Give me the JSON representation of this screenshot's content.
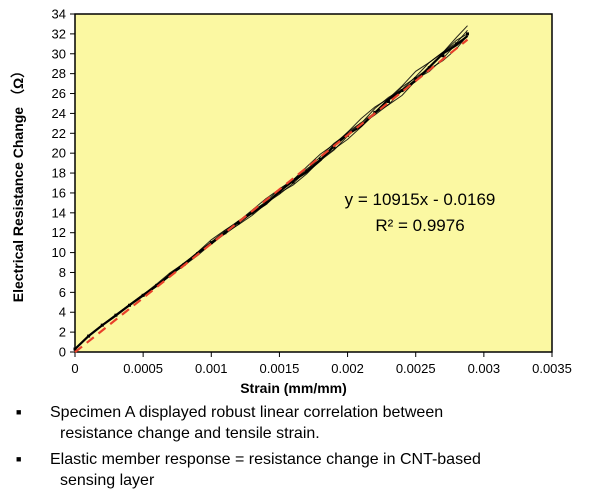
{
  "chart_data": {
    "type": "scatter",
    "xlabel": "Strain (mm/mm)",
    "ylabel": "Electrical Resistance Change （Ω）",
    "xlim": [
      0,
      0.0035
    ],
    "ylim": [
      0,
      34
    ],
    "x_ticks": [
      "0",
      "0.0005",
      "0.001",
      "0.0015",
      "0.002",
      "0.0025",
      "0.003",
      "0.0035"
    ],
    "y_ticks": [
      "0",
      "2",
      "4",
      "6",
      "8",
      "10",
      "12",
      "14",
      "16",
      "18",
      "20",
      "22",
      "24",
      "26",
      "28",
      "30",
      "32",
      "34"
    ],
    "series": [
      {
        "marker": "black data points (hysteresis loops)",
        "x": [
          0,
          0.0001,
          0.0002,
          0.0003,
          0.0004,
          0.0005,
          0.0006,
          0.0007,
          0.0008,
          0.0009,
          0.001,
          0.0011,
          0.0012,
          0.0013,
          0.0014,
          0.0015,
          0.0016,
          0.0017,
          0.0018,
          0.0019,
          0.002,
          0.0021,
          0.0022,
          0.0023,
          0.0024,
          0.0025,
          0.0026,
          0.0027,
          0.0028,
          0.00288
        ],
        "y": [
          0.3,
          1.6,
          2.7,
          3.7,
          4.7,
          5.7,
          6.7,
          7.8,
          8.8,
          9.9,
          11.0,
          12.0,
          13.0,
          14.0,
          15.0,
          16.1,
          17.1,
          18.2,
          19.4,
          20.6,
          21.8,
          22.9,
          24.1,
          25.2,
          26.3,
          27.5,
          28.6,
          29.8,
          31.0,
          32.0
        ]
      },
      {
        "style": "dashed red trendline",
        "x": [
          0,
          0.00288
        ],
        "y": [
          -0.0169,
          31.42
        ]
      }
    ],
    "trendline": {
      "slope": 10915,
      "intercept": -0.0169
    },
    "annotations": [
      "y = 10915x - 0.0169",
      "R² = 0.9976"
    ],
    "colors": {
      "plot_bg": "#fbf8a2",
      "trend": "#e8412a",
      "data": "#000000"
    }
  },
  "bullets": [
    {
      "mark": "■",
      "text": "Specimen A displayed robust linear correlation between",
      "cont": "resistance change and tensile  strain."
    },
    {
      "mark": "■",
      "text": "Elastic member response  = resistance change in CNT-based",
      "cont": "sensing layer"
    }
  ]
}
